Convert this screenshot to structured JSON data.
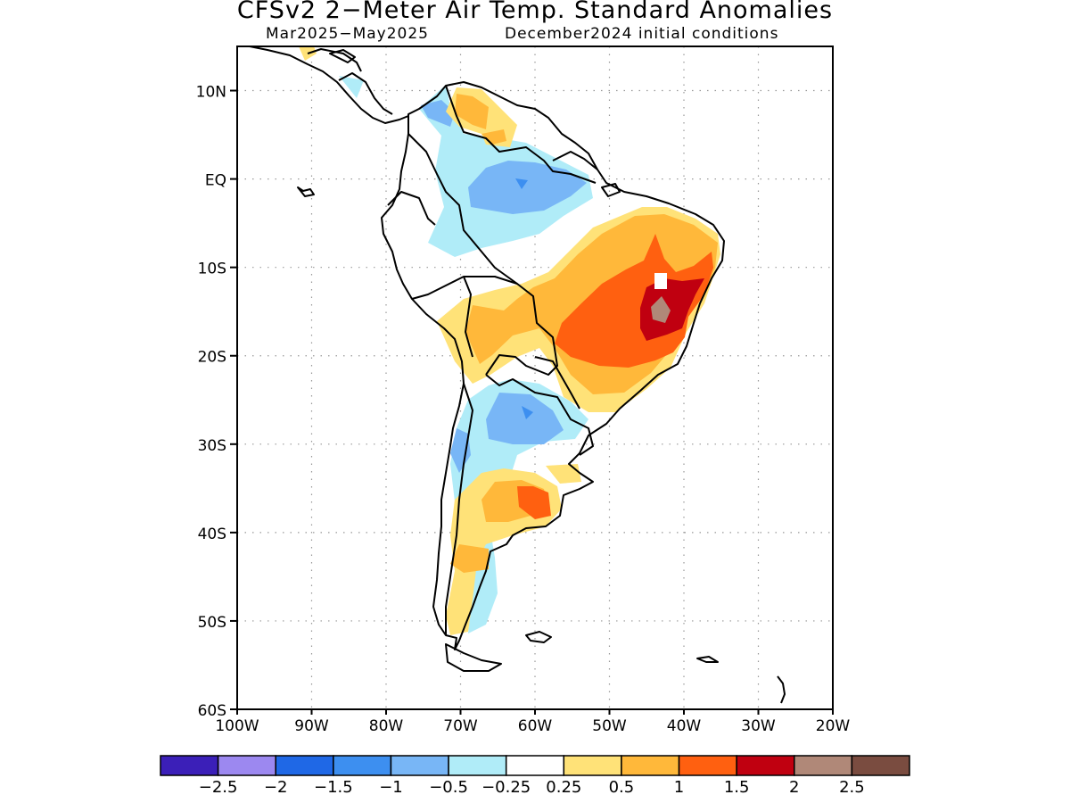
{
  "title": "CFSv2 2−Meter Air Temp. Standard Anomalies",
  "subtitle_period": "Mar2025−May2025",
  "subtitle_init": "December2024 initial conditions",
  "map": {
    "lon_range": [
      -100,
      -20
    ],
    "lat_range": [
      -60,
      15
    ],
    "y_ticks": [
      {
        "lat": 10,
        "label": "10N"
      },
      {
        "lat": 0,
        "label": "EQ"
      },
      {
        "lat": -10,
        "label": "10S"
      },
      {
        "lat": -20,
        "label": "20S"
      },
      {
        "lat": -30,
        "label": "30S"
      },
      {
        "lat": -40,
        "label": "40S"
      },
      {
        "lat": -50,
        "label": "50S"
      },
      {
        "lat": -60,
        "label": "60S"
      }
    ],
    "x_ticks": [
      {
        "lon": -100,
        "label": "100W"
      },
      {
        "lon": -90,
        "label": "90W"
      },
      {
        "lon": -80,
        "label": "80W"
      },
      {
        "lon": -70,
        "label": "70W"
      },
      {
        "lon": -60,
        "label": "60W"
      },
      {
        "lon": -50,
        "label": "50W"
      },
      {
        "lon": -40,
        "label": "40W"
      },
      {
        "lon": -30,
        "label": "30W"
      },
      {
        "lon": -20,
        "label": "20W"
      }
    ]
  },
  "colorbar": {
    "colors": [
      "#3b1fb8",
      "#9c88f0",
      "#1f68e6",
      "#3d8ff0",
      "#78b6f6",
      "#b0ecf8",
      "#ffffff",
      "#ffe278",
      "#ffb83a",
      "#ff6010",
      "#c00010",
      "#b08878",
      "#7a4c40"
    ],
    "labels": [
      "−2.5",
      "−2",
      "−1.5",
      "−1",
      "−0.5",
      "−0.25",
      "0.25",
      "0.5",
      "1",
      "1.5",
      "2",
      "2.5"
    ]
  }
}
